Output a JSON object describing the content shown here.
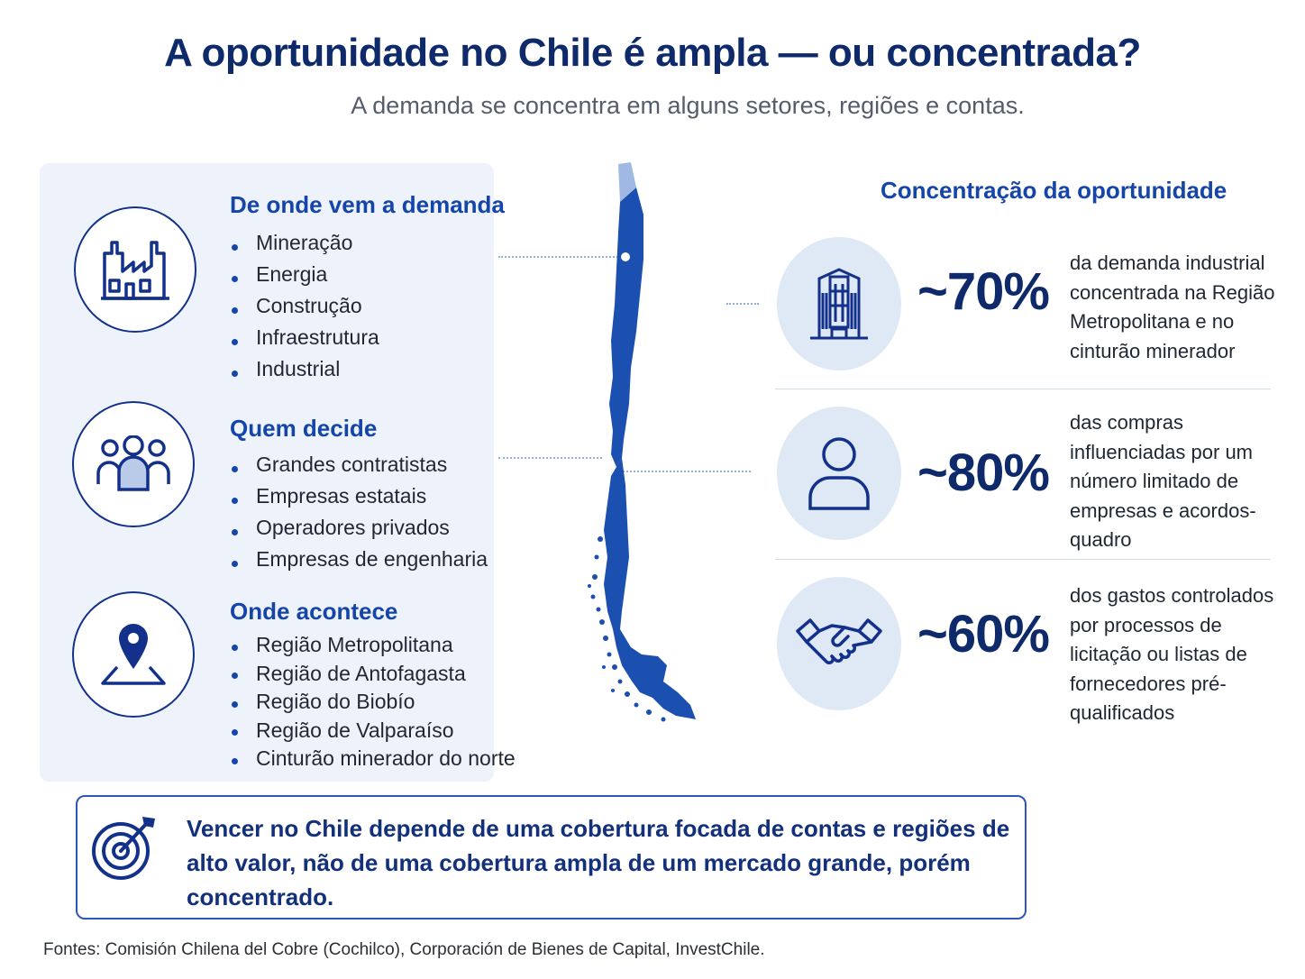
{
  "header": {
    "title": "A oportunidade no Chile é ampla — ou concentrada?",
    "subtitle": "A demanda se concentra em alguns setores, regiões e contas."
  },
  "left_panel": {
    "groups": [
      {
        "title": "De onde vem a demanda",
        "icon": "factory-icon",
        "items": [
          "Mineração",
          "Energia",
          "Construção",
          "Infraestrutura",
          "Industrial"
        ]
      },
      {
        "title": "Quem decide",
        "icon": "people-group-icon",
        "items": [
          "Grandes contratistas",
          "Empresas estatais",
          "Operadores privados",
          "Empresas de engenharia"
        ]
      },
      {
        "title": "Onde acontece",
        "icon": "location-pin-icon",
        "items": [
          "Região Metropolitana",
          "Região de Antofagasta",
          "Região do Biobío",
          "Região de Valparaíso",
          "Cinturão minerador do norte"
        ]
      }
    ]
  },
  "map": {
    "icon": "chile-map-icon"
  },
  "right_panel": {
    "title": "Concentração da oportunidade",
    "stats": [
      {
        "value": "~70%",
        "icon": "building-icon",
        "description": "da demanda industrial concentrada na Região Metropolitana e no cinturão minerador"
      },
      {
        "value": "~80%",
        "icon": "person-icon",
        "description": "das compras influenciadas por um número limitado de empresas e acordos-quadro"
      },
      {
        "value": "~60%",
        "icon": "handshake-icon",
        "description": "dos gastos controlados por processos de licitação ou listas de fornecedores pré-qualificados"
      }
    ]
  },
  "callout": {
    "icon": "target-icon",
    "text": "Vencer no Chile depende de uma cobertura focada de contas e regiões de alto valor, não de uma cobertura ampla de um mercado grande, porém concentrado."
  },
  "footer": {
    "sources": "Fontes: Comisión Chilena del Cobre (Cochilco), Corporación de Bienes de Capital, InvestChile."
  },
  "colors": {
    "navy": "#0e2a6b",
    "accent_blue": "#1545a8",
    "panel_bg": "#eef3fb",
    "circle_bg": "#dfe8f5"
  }
}
